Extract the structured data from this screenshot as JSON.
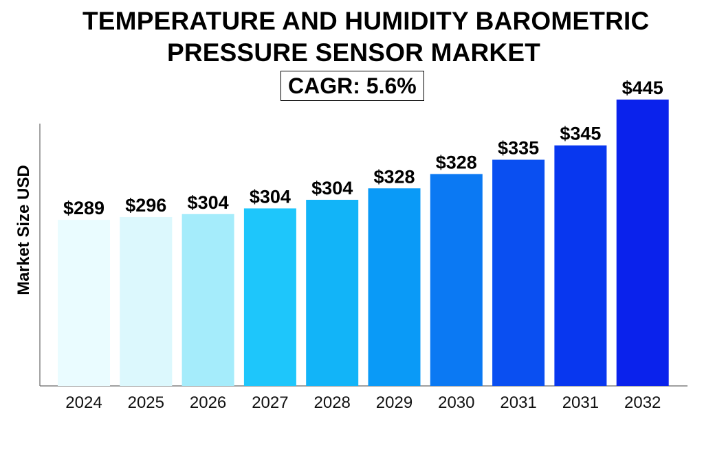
{
  "title_line1": "TEMPERATURE AND HUMIDITY BAROMETRIC",
  "title_line2": "PRESSURE SENSOR MARKET",
  "cagr_label": "CAGR: 5.6%",
  "chart_data": {
    "type": "bar",
    "title": "TEMPERATURE AND HUMIDITY BAROMETRIC PRESSURE SENSOR MARKET",
    "subtitle": "CAGR: 5.6%",
    "xlabel": "",
    "ylabel": "Market Size USD",
    "categories": [
      "2024",
      "2025",
      "2026",
      "2027",
      "2028",
      "2029",
      "2030",
      "2031",
      "2031",
      "2032"
    ],
    "values": [
      289,
      296,
      304,
      304,
      304,
      328,
      328,
      335,
      345,
      445
    ],
    "data_labels": [
      "$289",
      "$296",
      "$304",
      "$304",
      "$304",
      "$328",
      "$328",
      "$335",
      "$345",
      "$445"
    ],
    "bar_heights_relative": [
      0.58,
      0.59,
      0.6,
      0.62,
      0.65,
      0.69,
      0.74,
      0.79,
      0.84,
      1.0
    ],
    "bar_colors": [
      "#eafcff",
      "#dcf8fd",
      "#a5ecfb",
      "#1ec6fb",
      "#12b4f8",
      "#0a9af7",
      "#0b79f3",
      "#0a4ff1",
      "#0837ef",
      "#0a22ec"
    ],
    "grid": false,
    "legend": "none"
  }
}
